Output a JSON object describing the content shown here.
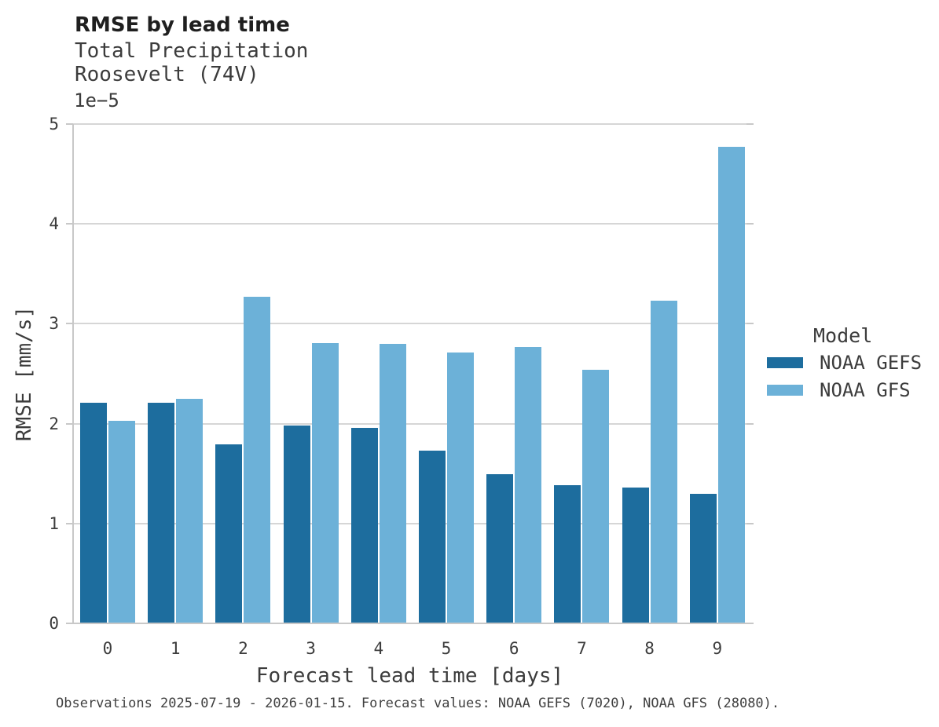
{
  "header": {
    "title": "RMSE by lead time",
    "subtitle_line1": "Total Precipitation",
    "subtitle_line2": "Roosevelt (74V)"
  },
  "chart_data": {
    "type": "bar",
    "title": "RMSE by lead time",
    "subtitle": [
      "Total Precipitation",
      "Roosevelt (74V)"
    ],
    "categories": [
      "0",
      "1",
      "2",
      "3",
      "4",
      "5",
      "6",
      "7",
      "8",
      "9"
    ],
    "series": [
      {
        "name": "NOAA GEFS",
        "color": "#1d6d9e",
        "values": [
          2.21,
          2.21,
          1.79,
          1.98,
          1.96,
          1.73,
          1.49,
          1.38,
          1.36,
          1.3
        ]
      },
      {
        "name": "NOAA GFS",
        "color": "#6cb1d8",
        "values": [
          2.03,
          2.25,
          3.27,
          2.81,
          2.8,
          2.71,
          2.77,
          2.54,
          3.23,
          4.77
        ]
      }
    ],
    "value_scale": "1e-5",
    "y_offset_label": "1e−5",
    "xlabel": "Forecast lead time [days]",
    "ylabel": "RMSE [mm/s]",
    "ylim": [
      0,
      5
    ],
    "yticks": [
      "0",
      "1",
      "2",
      "3",
      "4",
      "5"
    ],
    "grid": true,
    "legend_title": "Model",
    "legend_position": "right"
  },
  "footer": {
    "note": "Observations 2025-07-19 - 2026-01-15. Forecast values: NOAA GEFS (7020), NOAA GFS (28080)."
  },
  "colors": {
    "gefs_bar": "#1d6d9e",
    "gfs_bar": "#6cb1d8",
    "gridline": "#d6d6d6",
    "spine": "#c8c8c8",
    "text": "#3c3c3c",
    "title_text": "#1f1f1f",
    "background": "#ffffff"
  }
}
